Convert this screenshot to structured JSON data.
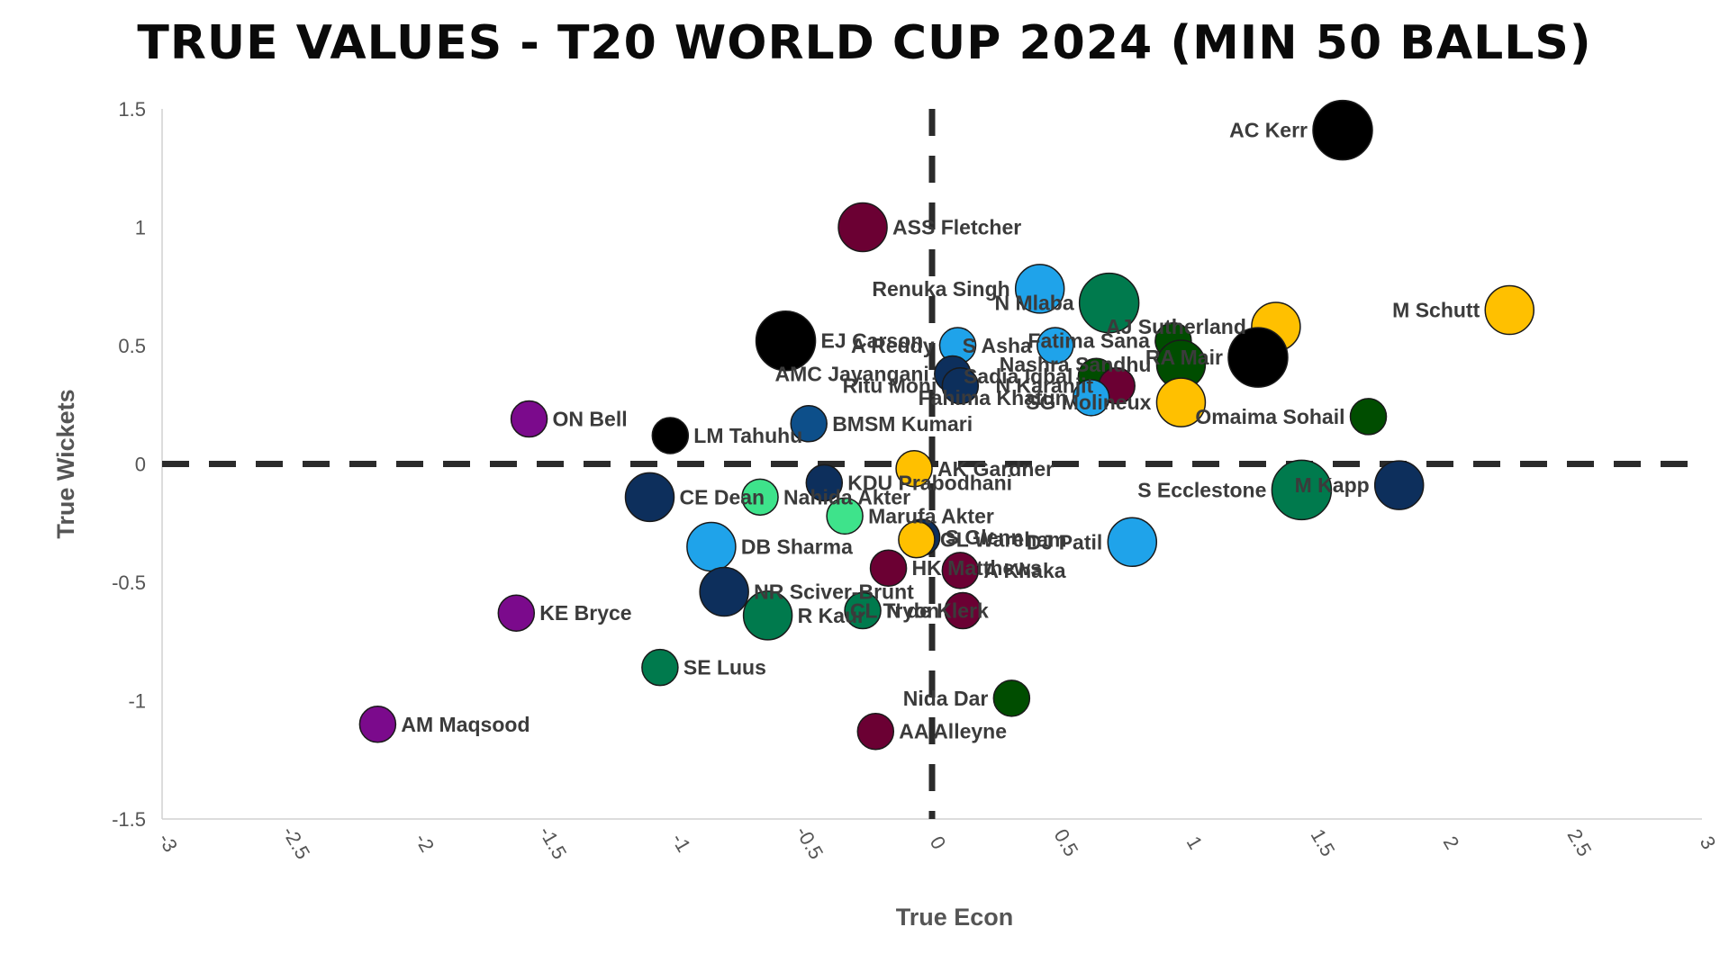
{
  "chart_data": {
    "type": "scatter",
    "title": "TRUE VALUES - T20 WORLD CUP 2024 (MIN 50 BALLS)",
    "xlabel": "True Econ",
    "ylabel": "True Wickets",
    "xlim": [
      -3,
      3
    ],
    "ylim": [
      -1.5,
      1.5
    ],
    "xticks": [
      "-3",
      "-2.5",
      "-2",
      "-1.5",
      "-1",
      "-0.5",
      "0",
      "0.5",
      "1",
      "1.5",
      "2",
      "2.5",
      "3"
    ],
    "yticks": [
      "1.5",
      "1",
      "0.5",
      "0",
      "-0.5",
      "-1",
      "-1.5"
    ],
    "grid": false,
    "reference_lines": [
      {
        "axis": "x",
        "value": 0,
        "style": "dashed"
      },
      {
        "axis": "y",
        "value": 0,
        "style": "dashed"
      }
    ],
    "points": [
      {
        "label": "AC Kerr",
        "x": 1.6,
        "y": 1.41,
        "color": "#000000",
        "size": "large",
        "label_side": "left"
      },
      {
        "label": "ASS Fletcher",
        "x": -0.27,
        "y": 1.0,
        "color": "#6b0033",
        "size": "medium",
        "label_side": "right"
      },
      {
        "label": "Renuka Singh",
        "x": 0.42,
        "y": 0.74,
        "color": "#1fa3ea",
        "size": "medium",
        "label_side": "left"
      },
      {
        "label": "N Mlaba",
        "x": 0.69,
        "y": 0.68,
        "color": "#007a4d",
        "size": "large",
        "label_side": "left"
      },
      {
        "label": "M Schutt",
        "x": 2.25,
        "y": 0.65,
        "color": "#ffc000",
        "size": "medium",
        "label_side": "left"
      },
      {
        "label": "AJ Sutherland",
        "x": 1.34,
        "y": 0.58,
        "color": "#ffc000",
        "size": "medium",
        "label_side": "left"
      },
      {
        "label": "Fatima Sana",
        "x": 0.94,
        "y": 0.52,
        "color": "#004d00",
        "size": "small",
        "label_side": "left"
      },
      {
        "label": "EJ Carson",
        "x": -0.57,
        "y": 0.52,
        "color": "#000000",
        "size": "large",
        "label_side": "right"
      },
      {
        "label": "A Reddy",
        "x": 0.1,
        "y": 0.5,
        "color": "#1fa3ea",
        "size": "small",
        "label_side": "left"
      },
      {
        "label": "S Asha",
        "x": 0.48,
        "y": 0.5,
        "color": "#1fa3ea",
        "size": "small",
        "label_side": "left"
      },
      {
        "label": "RA Mair",
        "x": 1.27,
        "y": 0.45,
        "color": "#000000",
        "size": "large",
        "label_side": "left"
      },
      {
        "label": "Nashra Sandhu",
        "x": 0.97,
        "y": 0.42,
        "color": "#004d00",
        "size": "medium",
        "label_side": "left"
      },
      {
        "label": "AMC Jayangani",
        "x": 0.08,
        "y": 0.38,
        "color": "#0d2f5c",
        "size": "small",
        "label_side": "left"
      },
      {
        "label": "Sadia Iqbal",
        "x": 0.64,
        "y": 0.37,
        "color": "#004d00",
        "size": "small",
        "label_side": "left"
      },
      {
        "label": "Ritu Moni",
        "x": 0.11,
        "y": 0.33,
        "color": "#0d2f5c",
        "size": "small",
        "label_side": "left"
      },
      {
        "label": "N Karanjit",
        "x": 0.72,
        "y": 0.33,
        "color": "#6b0033",
        "size": "small",
        "label_side": "left"
      },
      {
        "label": "Fahima Khatun",
        "x": 0.62,
        "y": 0.28,
        "color": "#1fa3ea",
        "size": "small",
        "label_side": "left"
      },
      {
        "label": "SG Molineux",
        "x": 0.97,
        "y": 0.26,
        "color": "#ffc000",
        "size": "medium",
        "label_side": "left"
      },
      {
        "label": "Omaima Sohail",
        "x": 1.7,
        "y": 0.2,
        "color": "#004d00",
        "size": "small",
        "label_side": "left"
      },
      {
        "label": "ON Bell",
        "x": -1.57,
        "y": 0.19,
        "color": "#7b0a8c",
        "size": "small",
        "label_side": "right"
      },
      {
        "label": "BMSM Kumari",
        "x": -0.48,
        "y": 0.17,
        "color": "#0d4f8a",
        "size": "small",
        "label_side": "right"
      },
      {
        "label": "LM Tahuhu",
        "x": -1.02,
        "y": 0.12,
        "color": "#000000",
        "size": "small",
        "label_side": "right"
      },
      {
        "label": "AK Gardner",
        "x": -0.07,
        "y": -0.02,
        "color": "#ffc000",
        "size": "small",
        "label_side": "right"
      },
      {
        "label": "KDU Prabodhani",
        "x": -0.42,
        "y": -0.08,
        "color": "#0d2f5c",
        "size": "small",
        "label_side": "right"
      },
      {
        "label": "S Ecclestone",
        "x": 1.44,
        "y": -0.11,
        "color": "#007a4d",
        "size": "large",
        "label_side": "left"
      },
      {
        "label": "M Kapp",
        "x": 1.82,
        "y": -0.09,
        "color": "#0d2f5c",
        "size": "medium",
        "label_side": "left"
      },
      {
        "label": "CE Dean",
        "x": -1.1,
        "y": -0.14,
        "color": "#0d2f5c",
        "size": "medium",
        "label_side": "right"
      },
      {
        "label": "Nahida Akter",
        "x": -0.67,
        "y": -0.14,
        "color": "#3ee38b",
        "size": "small",
        "label_side": "right"
      },
      {
        "label": "Marufa Akter",
        "x": -0.34,
        "y": -0.22,
        "color": "#3ee38b",
        "size": "small",
        "label_side": "right"
      },
      {
        "label": "S Glenn",
        "x": -0.04,
        "y": -0.31,
        "color": "#0d2f5c",
        "size": "small",
        "label_side": "right"
      },
      {
        "label": "GL Wareham",
        "x": -0.06,
        "y": -0.32,
        "color": "#ffc000",
        "size": "small",
        "label_side": "right"
      },
      {
        "label": "A Khaka",
        "x": 0.11,
        "y": -0.45,
        "color": "#6b0033",
        "size": "small",
        "label_side": "right"
      },
      {
        "label": "DB Sharma",
        "x": -0.86,
        "y": -0.35,
        "color": "#1fa3ea",
        "size": "medium",
        "label_side": "right"
      },
      {
        "label": "HK Matthews",
        "x": -0.17,
        "y": -0.44,
        "color": "#6b0033",
        "size": "small",
        "label_side": "right"
      },
      {
        "label": "DJ Patil",
        "x": 0.78,
        "y": -0.33,
        "color": "#1fa3ea",
        "size": "medium",
        "label_side": "left"
      },
      {
        "label": "NR Sciver-Brunt",
        "x": -0.81,
        "y": -0.54,
        "color": "#0d2f5c",
        "size": "medium",
        "label_side": "right"
      },
      {
        "label": "N de Klerk",
        "x": -0.27,
        "y": -0.62,
        "color": "#007a4d",
        "size": "small",
        "label_side": "right"
      },
      {
        "label": "R Kaur",
        "x": -0.64,
        "y": -0.64,
        "color": "#007a4d",
        "size": "medium",
        "label_side": "right"
      },
      {
        "label": "CL Tryon",
        "x": 0.12,
        "y": -0.62,
        "color": "#6b0033",
        "size": "small",
        "label_side": "left"
      },
      {
        "label": "KE Bryce",
        "x": -1.62,
        "y": -0.63,
        "color": "#7b0a8c",
        "size": "small",
        "label_side": "right"
      },
      {
        "label": "SE Luus",
        "x": -1.06,
        "y": -0.86,
        "color": "#007a4d",
        "size": "small",
        "label_side": "right"
      },
      {
        "label": "Nida Dar",
        "x": 0.31,
        "y": -0.99,
        "color": "#004d00",
        "size": "small",
        "label_side": "left"
      },
      {
        "label": "AM Maqsood",
        "x": -2.16,
        "y": -1.1,
        "color": "#7b0a8c",
        "size": "small",
        "label_side": "right"
      },
      {
        "label": "AA Alleyne",
        "x": -0.22,
        "y": -1.13,
        "color": "#6b0033",
        "size": "small",
        "label_side": "right"
      }
    ]
  }
}
